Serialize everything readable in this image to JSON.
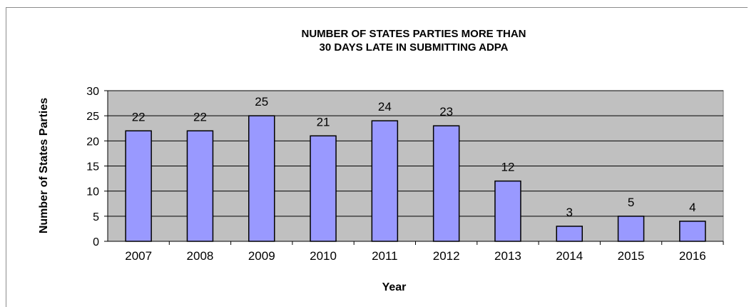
{
  "chart_data": {
    "type": "bar",
    "title_line1": "NUMBER OF STATES PARTIES MORE THAN",
    "title_line2": "30 DAYS LATE IN SUBMITTING ADPA",
    "xlabel": "Year",
    "ylabel": "Number of States Parties",
    "categories": [
      "2007",
      "2008",
      "2009",
      "2010",
      "2011",
      "2012",
      "2013",
      "2014",
      "2015",
      "2016"
    ],
    "values": [
      22,
      22,
      25,
      21,
      24,
      23,
      12,
      3,
      5,
      4
    ],
    "ylim": [
      0,
      30
    ],
    "yticks": [
      0,
      5,
      10,
      15,
      20,
      25,
      30
    ],
    "grid": true,
    "data_labels": true,
    "legend": "none",
    "colors": {
      "bar_fill": "#9999ff",
      "bar_stroke": "#000000",
      "plot_background": "#c0c0c0",
      "gridline": "#000000"
    }
  }
}
